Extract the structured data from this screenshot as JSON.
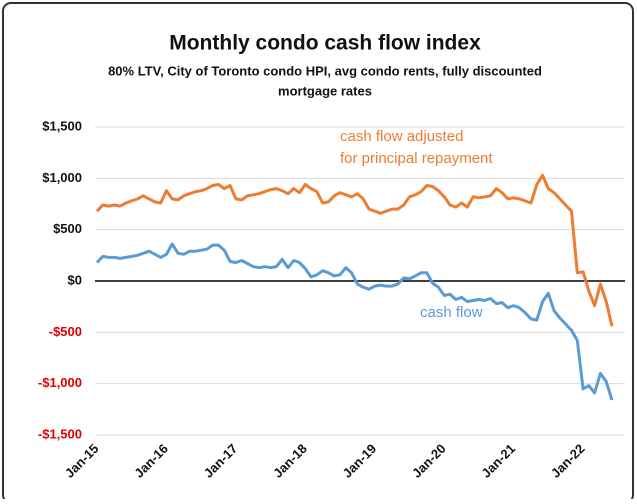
{
  "chart_data": {
    "type": "line",
    "title": "Monthly condo cash flow index",
    "subtitle": [
      "80% LTV, City of Toronto condo HPI, avg condo rents, fully discounted",
      "mortgage rates"
    ],
    "categories": [
      "Jan-15",
      null,
      null,
      null,
      null,
      null,
      null,
      null,
      null,
      null,
      null,
      null,
      "Jan-16",
      null,
      null,
      null,
      null,
      null,
      null,
      null,
      null,
      null,
      null,
      null,
      "Jan-17",
      null,
      null,
      null,
      null,
      null,
      null,
      null,
      null,
      null,
      null,
      null,
      "Jan-18",
      null,
      null,
      null,
      null,
      null,
      null,
      null,
      null,
      null,
      null,
      null,
      "Jan-19",
      null,
      null,
      null,
      null,
      null,
      null,
      null,
      null,
      null,
      null,
      null,
      "Jan-20",
      null,
      null,
      null,
      null,
      null,
      null,
      null,
      null,
      null,
      null,
      null,
      "Jan-21",
      null,
      null,
      null,
      null,
      null,
      null,
      null,
      null,
      null,
      null,
      null,
      "Jan-22",
      null,
      null,
      null,
      null,
      null
    ],
    "series": [
      {
        "name": "cash flow adjusted for principal repayment",
        "label_lines": [
          "cash flow adjusted",
          "for principal repayment"
        ],
        "color": "#ed7d31",
        "values": [
          680,
          740,
          730,
          740,
          730,
          760,
          780,
          800,
          830,
          800,
          770,
          760,
          880,
          800,
          790,
          830,
          850,
          870,
          880,
          900,
          930,
          940,
          900,
          930,
          800,
          790,
          830,
          840,
          850,
          870,
          890,
          900,
          880,
          850,
          900,
          860,
          940,
          900,
          870,
          760,
          770,
          830,
          860,
          840,
          820,
          850,
          800,
          700,
          680,
          660,
          680,
          700,
          700,
          740,
          820,
          840,
          870,
          930,
          920,
          880,
          820,
          740,
          720,
          760,
          720,
          820,
          810,
          820,
          830,
          900,
          860,
          800,
          810,
          800,
          780,
          760,
          940,
          1030,
          900,
          860,
          800,
          740,
          680,
          80,
          90,
          -100,
          -240,
          -30,
          -200,
          -440
        ]
      },
      {
        "name": "cash flow",
        "label_lines": [
          "cash flow"
        ],
        "color": "#5b9bd5",
        "values": [
          180,
          240,
          230,
          230,
          220,
          230,
          240,
          250,
          270,
          290,
          260,
          230,
          260,
          360,
          270,
          260,
          290,
          290,
          300,
          310,
          350,
          350,
          300,
          190,
          180,
          200,
          170,
          140,
          130,
          140,
          130,
          140,
          210,
          130,
          200,
          180,
          120,
          40,
          60,
          100,
          80,
          50,
          60,
          130,
          80,
          -30,
          -60,
          -80,
          -50,
          -40,
          -50,
          -50,
          -30,
          30,
          20,
          50,
          80,
          80,
          -20,
          -60,
          -140,
          -130,
          -180,
          -160,
          -200,
          -190,
          -180,
          -190,
          -170,
          -220,
          -210,
          -260,
          -240,
          -260,
          -310,
          -370,
          -380,
          -200,
          -120,
          -290,
          -360,
          -420,
          -480,
          -580,
          -1050,
          -1020,
          -1090,
          -900,
          -980,
          -1160
        ]
      }
    ],
    "ylim": [
      -1500,
      1500
    ],
    "yticks": [
      {
        "value": 1500,
        "label": "$1,500"
      },
      {
        "value": 1000,
        "label": "$1,000"
      },
      {
        "value": 500,
        "label": "$500"
      },
      {
        "value": 0,
        "label": "$0"
      },
      {
        "value": -500,
        "label": "-$500"
      },
      {
        "value": -1000,
        "label": "-$1,000"
      },
      {
        "value": -1500,
        "label": "-$1,500"
      }
    ],
    "grid": true,
    "negative_tick_color": "#e00000"
  }
}
